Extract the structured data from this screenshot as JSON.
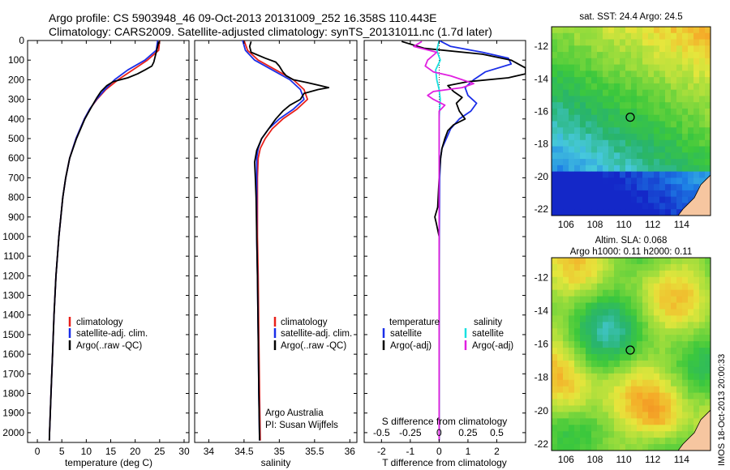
{
  "header": {
    "title_line1": "Argo profile: CS 5903948_46 09-Oct-2013 20131009_252 16.358S 110.443E",
    "title_line2": "Climatology: CARS2009. Satellite-adjusted climatology: synTS_20131011.nc (1.7d later)"
  },
  "side_stamp": "IMOS 18-Oct-2013 20:00:33",
  "colors": {
    "climatology": "#e8201a",
    "satellite": "#1a2ee8",
    "argo": "#000000",
    "s_satellite": "#19e0e0",
    "s_argo": "#e020e0"
  },
  "chart_data": [
    {
      "type": "line",
      "id": "temperature",
      "xlabel": "temperature (deg C)",
      "ylabel": "",
      "xlim": [
        -2,
        31
      ],
      "ylim": [
        2050,
        0
      ],
      "xticks": [
        0,
        5,
        10,
        15,
        20,
        25,
        30
      ],
      "yticks": [
        0,
        100,
        200,
        300,
        400,
        500,
        600,
        700,
        800,
        900,
        1000,
        1100,
        1200,
        1300,
        1400,
        1500,
        1600,
        1700,
        1800,
        1900,
        2000
      ],
      "legend": [
        "climatology",
        "satellite-adj. clim.",
        "Argo(..raw -QC)"
      ],
      "series": [
        {
          "name": "climatology",
          "color": "#e8201a",
          "depth": [
            0,
            50,
            100,
            150,
            200,
            250,
            300,
            350,
            400,
            500,
            600,
            700,
            800,
            1000,
            1200,
            1400,
            1600,
            1800,
            2000,
            2040
          ],
          "values": [
            25.0,
            24.8,
            22.5,
            19.5,
            16.5,
            14.0,
            12.2,
            10.7,
            9.6,
            7.9,
            6.6,
            5.8,
            5.2,
            4.4,
            3.8,
            3.4,
            3.1,
            2.8,
            2.5,
            2.45
          ]
        },
        {
          "name": "satellite-adj. clim.",
          "color": "#1a2ee8",
          "depth": [
            0,
            50,
            100,
            150,
            200,
            250,
            300,
            350,
            400,
            500,
            600,
            700,
            800,
            1000,
            1200,
            1400,
            1600,
            1800,
            2000,
            2040
          ],
          "values": [
            24.6,
            24.3,
            22.0,
            18.5,
            15.8,
            13.8,
            12.1,
            10.7,
            9.6,
            7.9,
            6.6,
            5.8,
            5.2,
            4.4,
            3.8,
            3.4,
            3.1,
            2.8,
            2.5,
            2.45
          ]
        },
        {
          "name": "Argo(..raw -QC)",
          "color": "#000000",
          "depth": [
            5,
            30,
            60,
            90,
            110,
            130,
            150,
            170,
            190,
            210,
            230,
            260,
            290,
            320,
            360,
            400,
            500,
            600,
            700,
            800,
            1000,
            1200,
            1400,
            1600,
            1800,
            2000,
            2040
          ],
          "values": [
            24.8,
            24.6,
            24.3,
            24.0,
            23.8,
            23.4,
            22.0,
            20.5,
            18.5,
            15.5,
            14.2,
            13.0,
            12.2,
            11.5,
            10.6,
            9.7,
            8.0,
            6.6,
            5.8,
            5.2,
            4.4,
            3.8,
            3.4,
            3.1,
            2.8,
            2.5,
            2.45
          ]
        }
      ]
    },
    {
      "type": "line",
      "id": "salinity",
      "xlabel": "salinity",
      "ylabel": "",
      "xlim": [
        33.8,
        36.1
      ],
      "ylim": [
        2050,
        0
      ],
      "xticks": [
        34,
        34.5,
        35,
        35.5,
        36
      ],
      "legend": [
        "climatology",
        "satellite-adj. clim.",
        "Argo(..raw -QC)"
      ],
      "annotation": [
        "Argo Australia",
        "PI: Susan Wijffels"
      ],
      "series": [
        {
          "name": "climatology",
          "color": "#e8201a",
          "depth": [
            0,
            50,
            100,
            150,
            200,
            250,
            300,
            350,
            400,
            450,
            500,
            550,
            600,
            700,
            800,
            1000,
            1200,
            1500,
            1800,
            2040
          ],
          "values": [
            34.5,
            34.55,
            34.7,
            34.95,
            35.2,
            35.35,
            35.4,
            35.25,
            35.05,
            34.9,
            34.8,
            34.73,
            34.7,
            34.69,
            34.69,
            34.69,
            34.7,
            34.71,
            34.72,
            34.73
          ]
        },
        {
          "name": "satellite-adj. clim.",
          "color": "#1a2ee8",
          "depth": [
            0,
            50,
            100,
            150,
            200,
            250,
            300,
            350,
            400,
            450,
            500,
            550,
            600,
            700,
            800,
            1000,
            1200,
            1500,
            1800,
            2040
          ],
          "values": [
            34.48,
            34.52,
            34.65,
            34.9,
            35.15,
            35.3,
            35.35,
            35.2,
            35.0,
            34.85,
            34.75,
            34.7,
            34.68,
            34.68,
            34.68,
            34.68,
            34.69,
            34.7,
            34.71,
            34.72
          ]
        },
        {
          "name": "Argo(..raw -QC)",
          "color": "#000000",
          "depth": [
            5,
            30,
            60,
            90,
            110,
            130,
            160,
            180,
            200,
            215,
            230,
            240,
            250,
            270,
            300,
            330,
            360,
            400,
            450,
            500,
            560,
            620,
            700,
            800,
            1000,
            1200,
            1500,
            1800,
            2040
          ],
          "values": [
            34.6,
            34.58,
            34.6,
            34.8,
            34.95,
            35.0,
            35.05,
            35.1,
            35.2,
            35.4,
            35.58,
            35.7,
            35.55,
            35.35,
            35.3,
            35.15,
            35.05,
            34.95,
            34.85,
            34.75,
            34.68,
            34.65,
            34.66,
            34.67,
            34.68,
            34.69,
            34.7,
            34.71,
            34.72
          ]
        }
      ]
    },
    {
      "type": "line",
      "id": "difference",
      "xlabel": "T difference from climatology",
      "x2label": "S difference from climatology",
      "xlim": [
        -2.6,
        3.0
      ],
      "ylim": [
        2050,
        0
      ],
      "xticks": [
        -2,
        -1,
        0,
        1,
        2
      ],
      "x2ticks": [
        "-0.5",
        "-0.25",
        "0",
        "0.25",
        "0.5"
      ],
      "legend_headers": [
        "temperature",
        "salinity"
      ],
      "legend": [
        "satellite",
        "Argo(-adj)",
        "satellite",
        "Argo(-adj)"
      ],
      "series": [
        {
          "name": "satellite",
          "quantity": "temperature",
          "color": "#1a2ee8",
          "depth": [
            0,
            30,
            60,
            90,
            120,
            160,
            200,
            240,
            280,
            320,
            360,
            400,
            450,
            500,
            550,
            600,
            700,
            1000,
            1500,
            2040
          ],
          "values": [
            0.0,
            0.4,
            1.5,
            2.4,
            2.5,
            1.6,
            1.2,
            0.9,
            1.0,
            1.3,
            1.1,
            0.7,
            0.4,
            0.25,
            0.1,
            0.05,
            0.02,
            0.01,
            0.0,
            0.0
          ]
        },
        {
          "name": "Argo(-adj)",
          "quantity": "temperature",
          "color": "#000000",
          "depth": [
            5,
            40,
            70,
            100,
            140,
            170,
            190,
            210,
            230,
            260,
            290,
            320,
            360,
            400,
            430,
            460,
            500,
            550,
            600,
            700,
            850,
            900,
            930,
            1000,
            1200,
            1500,
            1800,
            2040
          ],
          "values": [
            -1.3,
            -0.5,
            1.5,
            2.5,
            3.0,
            3.0,
            2.4,
            1.0,
            0.3,
            0.5,
            0.8,
            0.6,
            0.7,
            0.9,
            0.5,
            0.3,
            0.2,
            0.1,
            0.05,
            0.0,
            -0.05,
            -0.15,
            -0.1,
            0.0,
            0.0,
            0.0,
            0.0,
            0.0
          ]
        },
        {
          "name": "satellite",
          "quantity": "salinity",
          "color": "#19e0e0",
          "depth": [
            0,
            50,
            100,
            150,
            200,
            250,
            300,
            400,
            500,
            700,
            1000,
            1500,
            2040
          ],
          "values": [
            0.0,
            -0.02,
            0.01,
            -0.03,
            -0.02,
            0.0,
            0.01,
            0.0,
            0.0,
            0.0,
            0.0,
            0.0,
            0.0
          ]
        },
        {
          "name": "Argo(-adj)",
          "quantity": "salinity",
          "color": "#e020e0",
          "depth": [
            5,
            30,
            60,
            100,
            130,
            160,
            180,
            200,
            220,
            240,
            260,
            280,
            300,
            330,
            360,
            400,
            500,
            600,
            800,
            1200,
            2040
          ],
          "values": [
            -0.15,
            -0.22,
            -0.02,
            -0.1,
            -0.12,
            -0.05,
            0.1,
            0.2,
            0.3,
            0.2,
            -0.05,
            -0.1,
            -0.05,
            0.05,
            0.0,
            0.0,
            0.0,
            0.0,
            0.0,
            0.0,
            0.0
          ]
        }
      ]
    },
    {
      "type": "heatmap",
      "id": "sst_map",
      "title": "sat. SST: 24.4  Argo: 24.5",
      "xticks": [
        106,
        108,
        110,
        112,
        114
      ],
      "yticks": [
        -12,
        -14,
        -16,
        -18,
        -20,
        -22
      ],
      "xlim": [
        105,
        116
      ],
      "ylim": [
        -22.4,
        -10.8
      ],
      "marker": {
        "lon": 110.443,
        "lat": -16.358
      }
    },
    {
      "type": "heatmap",
      "id": "sla_map",
      "title": "Altim. SLA: 0.068",
      "subtitle": "Argo h1000: 0.11 h2000: 0.11",
      "xticks": [
        106,
        108,
        110,
        112,
        114
      ],
      "yticks": [
        -12,
        -14,
        -16,
        -18,
        -20,
        -22
      ],
      "xlim": [
        105,
        116
      ],
      "ylim": [
        -22.4,
        -10.8
      ],
      "marker": {
        "lon": 110.443,
        "lat": -16.358
      }
    }
  ]
}
